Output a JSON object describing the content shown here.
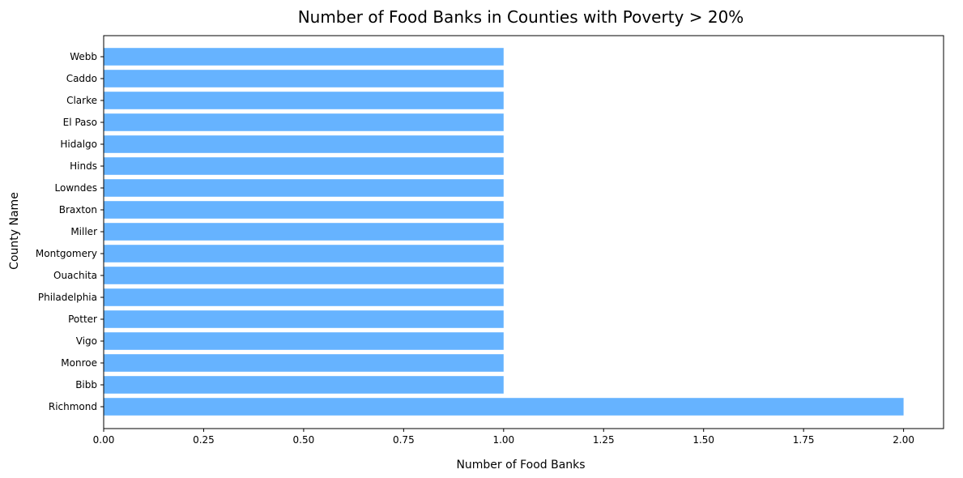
{
  "chart_data": {
    "type": "bar",
    "orientation": "horizontal",
    "title": "Number of Food Banks in Counties with Poverty > 20%",
    "xlabel": "Number of Food Banks",
    "ylabel": "County Name",
    "categories": [
      "Webb",
      "Caddo",
      "Clarke",
      "El Paso",
      "Hidalgo",
      "Hinds",
      "Lowndes",
      "Braxton",
      "Miller",
      "Montgomery",
      "Ouachita",
      "Philadelphia",
      "Potter",
      "Vigo",
      "Monroe",
      "Bibb",
      "Richmond"
    ],
    "values": [
      1,
      1,
      1,
      1,
      1,
      1,
      1,
      1,
      1,
      1,
      1,
      1,
      1,
      1,
      1,
      1,
      2
    ],
    "xlim": [
      0,
      2.1
    ],
    "xticks": [
      "0.00",
      "0.25",
      "0.50",
      "0.75",
      "1.00",
      "1.25",
      "1.50",
      "1.75",
      "2.00"
    ],
    "grid": false,
    "bar_color": "#66b3ff"
  }
}
